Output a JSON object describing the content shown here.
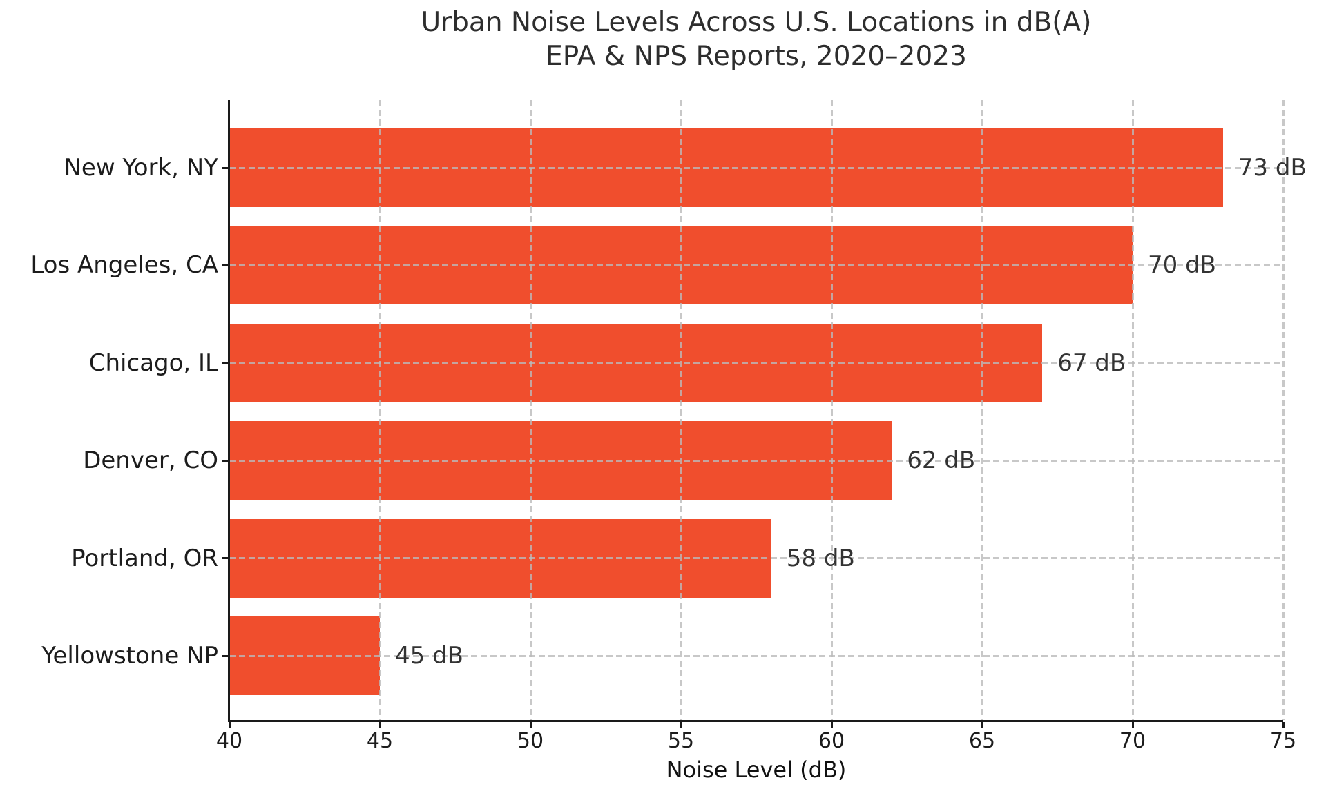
{
  "chart_data": {
    "type": "bar",
    "orientation": "horizontal",
    "title": "Urban Noise Levels Across U.S. Locations in dB(A)",
    "subtitle": "EPA & NPS Reports, 2020–2023",
    "xlabel": "Noise Level (dB)",
    "categories": [
      "New York, NY",
      "Los Angeles, CA",
      "Chicago, IL",
      "Denver, CO",
      "Portland, OR",
      "Yellowstone NP"
    ],
    "values": [
      73,
      70,
      67,
      62,
      58,
      45
    ],
    "value_labels": [
      "73 dB",
      "70 dB",
      "67 dB",
      "62 dB",
      "58 dB",
      "45 dB"
    ],
    "xlim": [
      40,
      75
    ],
    "xticks": [
      40,
      45,
      50,
      55,
      60,
      65,
      70,
      75
    ],
    "bar_color": "#F04E2D",
    "grid_style": "dashed",
    "grid_color": "#BABABA",
    "axis_color": "#1a1a1a",
    "legend": "none"
  }
}
